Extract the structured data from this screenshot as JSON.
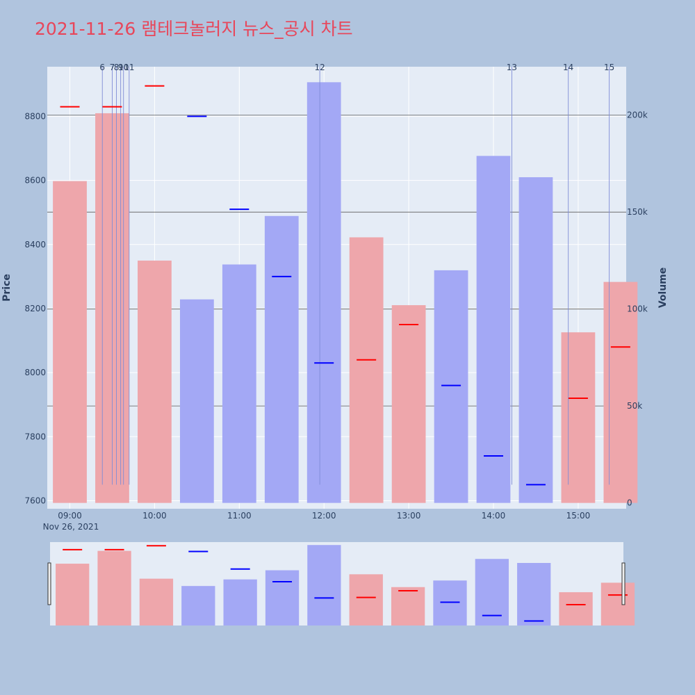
{
  "title": "2021-11-26 램테크놀러지 뉴스_공시 차트",
  "colors": {
    "background": "#b0c4de",
    "plot_bg": "#e5ecf6",
    "title": "#e8465a",
    "up_bar": "#a3a8f5",
    "down_bar": "#eea6ab",
    "up_tick": "#0000ff",
    "down_tick": "#ff0000",
    "news_line": "#7f8cd6",
    "grid_dark": "#5a5a5a",
    "text": "#2a3f5f"
  },
  "chart_data": {
    "type": "bar",
    "xlabel": "",
    "date_label": "Nov 26, 2021",
    "x_tick_labels": [
      "09:00",
      "10:00",
      "11:00",
      "12:00",
      "13:00",
      "14:00",
      "15:00"
    ],
    "x_ticks_minutes": [
      540,
      600,
      660,
      720,
      780,
      840,
      900
    ],
    "xlim_minutes": [
      524,
      934
    ],
    "price_axis": {
      "label": "Price",
      "range": [
        7575,
        8955
      ],
      "ticks": [
        7600,
        7800,
        8000,
        8200,
        8400,
        8600,
        8800
      ]
    },
    "volume_axis": {
      "label": "Volume",
      "range": [
        -3000,
        225000
      ],
      "ticks": [
        0,
        50000,
        100000,
        150000,
        200000
      ],
      "tick_labels": [
        "0",
        "50k",
        "100k",
        "150k",
        "200k"
      ]
    },
    "bars": [
      {
        "t": 540,
        "volume": 166000,
        "price": 8830,
        "dir": "down"
      },
      {
        "t": 570,
        "volume": 201000,
        "price": 8830,
        "dir": "down"
      },
      {
        "t": 600,
        "volume": 125000,
        "price": 8895,
        "dir": "down"
      },
      {
        "t": 630,
        "volume": 105000,
        "price": 8800,
        "dir": "up"
      },
      {
        "t": 660,
        "volume": 123000,
        "price": 8510,
        "dir": "up"
      },
      {
        "t": 690,
        "volume": 148000,
        "price": 8300,
        "dir": "up"
      },
      {
        "t": 720,
        "volume": 217000,
        "price": 8030,
        "dir": "up"
      },
      {
        "t": 750,
        "volume": 137000,
        "price": 8040,
        "dir": "down"
      },
      {
        "t": 780,
        "volume": 102000,
        "price": 8150,
        "dir": "down"
      },
      {
        "t": 810,
        "volume": 120000,
        "price": 7960,
        "dir": "up"
      },
      {
        "t": 840,
        "volume": 179000,
        "price": 7740,
        "dir": "up"
      },
      {
        "t": 870,
        "volume": 168000,
        "price": 7650,
        "dir": "up"
      },
      {
        "t": 900,
        "volume": 88000,
        "price": 7920,
        "dir": "down"
      },
      {
        "t": 930,
        "volume": 114000,
        "price": 8080,
        "dir": "down"
      }
    ],
    "news_markers": [
      {
        "label": "6",
        "t": 563
      },
      {
        "label": "7",
        "t": 570
      },
      {
        "label": "8",
        "t": 573
      },
      {
        "label": "9",
        "t": 576
      },
      {
        "label": "10",
        "t": 578
      },
      {
        "label": "11",
        "t": 582
      },
      {
        "label": "12",
        "t": 717
      },
      {
        "label": "13",
        "t": 853
      },
      {
        "label": "14",
        "t": 893
      },
      {
        "label": "15",
        "t": 922
      }
    ]
  }
}
